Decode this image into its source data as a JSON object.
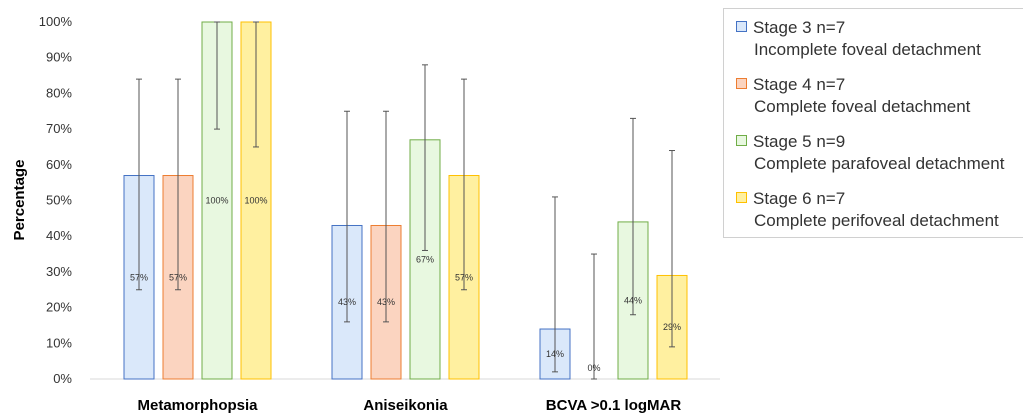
{
  "chart_data": {
    "type": "bar",
    "categories": [
      "Metamorphopsia",
      "Aniseikonia",
      "BCVA >0.1 logMAR"
    ],
    "ylabel": "Percentage",
    "xlabel": "",
    "ylim": [
      0,
      100
    ],
    "yticks": [
      "0%",
      "10%",
      "20%",
      "30%",
      "40%",
      "50%",
      "60%",
      "70%",
      "80%",
      "90%",
      "100%"
    ],
    "grid": false,
    "legend_position": "right",
    "series": [
      {
        "name": "Stage 3  n=7",
        "description": "Incomplete foveal detachment",
        "fill": "#dae8fa",
        "stroke": "#4472c4",
        "values": [
          57,
          43,
          14
        ],
        "labels": [
          "57%",
          "43%",
          "14%"
        ],
        "error_low": [
          25,
          16,
          2
        ],
        "error_high": [
          84,
          75,
          51
        ]
      },
      {
        "name": "Stage 4  n=7",
        "description": "Complete foveal detachment",
        "fill": "#fbd4c0",
        "stroke": "#ed7d31",
        "values": [
          57,
          43,
          0
        ],
        "labels": [
          "57%",
          "43%",
          "0%"
        ],
        "error_low": [
          25,
          16,
          0
        ],
        "error_high": [
          84,
          75,
          35
        ]
      },
      {
        "name": "Stage 5  n=9",
        "description": "Complete parafoveal detachment",
        "fill": "#e8f8e0",
        "stroke": "#70ad47",
        "values": [
          100,
          67,
          44
        ],
        "labels": [
          "100%",
          "67%",
          "44%"
        ],
        "error_low": [
          70,
          36,
          18
        ],
        "error_high": [
          100,
          88,
          73
        ]
      },
      {
        "name": "Stage 6  n=7",
        "description": "Complete perifoveal detachment",
        "fill": "#fff0a0",
        "stroke": "#ffc000",
        "values": [
          100,
          57,
          29
        ],
        "labels": [
          "100%",
          "57%",
          "29%"
        ],
        "error_low": [
          65,
          25,
          9
        ],
        "error_high": [
          100,
          84,
          64
        ]
      }
    ]
  }
}
